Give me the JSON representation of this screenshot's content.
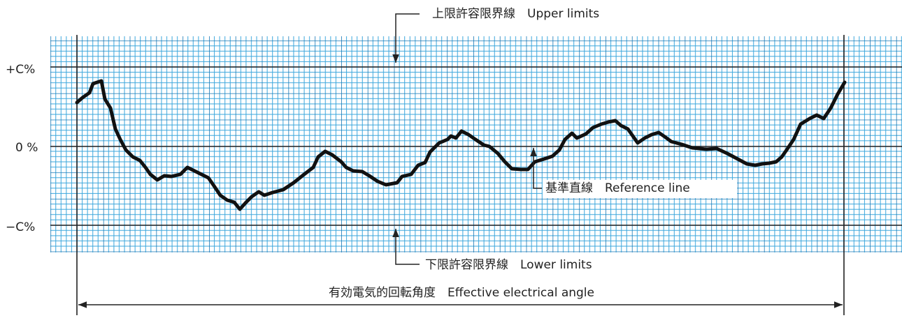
{
  "y_labels": {
    "upper": "+C%",
    "zero": "0 %",
    "lower": "−C%"
  },
  "annotations": {
    "upper_limits": "上限許容限界線　Upper limits",
    "reference_line": "基準直線　Reference line",
    "lower_limits": "下限許容限界線　Lower limits",
    "effective_angle": "有効電気的回転角度　Effective electrical angle"
  }
}
